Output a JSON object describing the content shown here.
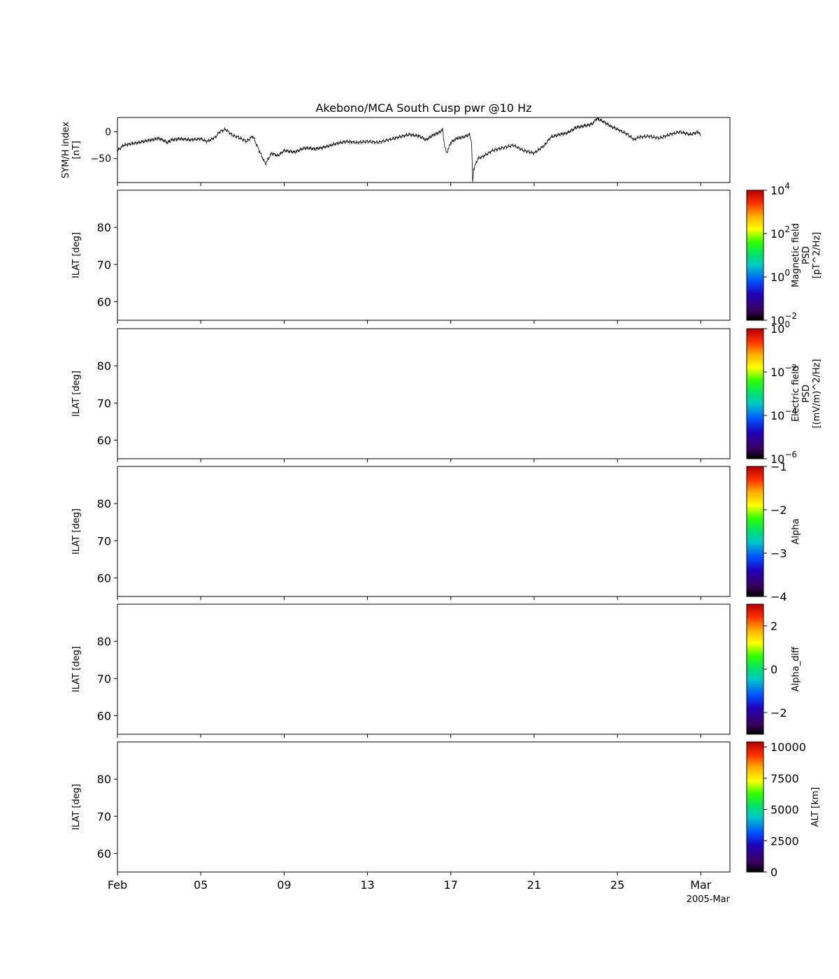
{
  "chart_data": {
    "type": "line",
    "title": "Akebono/MCA South Cusp pwr @10 Hz",
    "x_ticks": [
      "Feb",
      "05",
      "09",
      "13",
      "17",
      "21",
      "25",
      "Mar"
    ],
    "x_tick_days": [
      1,
      5,
      9,
      13,
      17,
      21,
      25,
      29
    ],
    "x_range_days": [
      1,
      30.4
    ],
    "x_offset_label": "2005-Mar",
    "symh": {
      "ylabel_lines": [
        "SYM/H index",
        "[nT]"
      ],
      "ylim": [
        -95,
        27
      ],
      "yticks": [
        0,
        -50
      ],
      "ytick_labels": [
        "0",
        "−50"
      ],
      "series": [
        {
          "name": "SYM/H",
          "color": "#000000",
          "x": [
            1.0,
            1.3,
            1.7,
            2.0,
            2.5,
            3.0,
            3.4,
            3.6,
            4.0,
            4.5,
            5.0,
            5.3,
            5.7,
            5.9,
            6.2,
            6.5,
            6.8,
            7.2,
            7.5,
            7.8,
            8.1,
            8.4,
            8.7,
            9.0,
            9.5,
            10.0,
            10.5,
            11.0,
            11.5,
            12.0,
            12.5,
            13.0,
            13.5,
            14.0,
            14.5,
            15.0,
            15.5,
            15.8,
            16.2,
            16.5,
            16.6,
            16.7,
            16.8,
            17.0,
            17.3,
            17.6,
            17.9,
            18.0,
            18.05,
            18.1,
            18.3,
            18.6,
            19.0,
            19.5,
            20.0,
            20.5,
            21.0,
            21.5,
            21.8,
            22.2,
            22.6,
            23.0,
            23.5,
            23.8,
            24.0,
            24.3,
            24.7,
            25.0,
            25.5,
            25.8,
            26.0,
            26.5,
            27.0,
            27.5,
            28.0,
            28.5,
            28.9,
            29.0
          ],
          "y": [
            -35,
            -25,
            -22,
            -20,
            -16,
            -12,
            -20,
            -15,
            -13,
            -15,
            -13,
            -18,
            -10,
            0,
            5,
            -6,
            -10,
            -18,
            -8,
            -35,
            -60,
            -40,
            -45,
            -35,
            -38,
            -30,
            -32,
            -28,
            -22,
            -18,
            -20,
            -18,
            -20,
            -15,
            -10,
            -5,
            -8,
            -15,
            -5,
            0,
            5,
            -25,
            -40,
            -20,
            -12,
            -10,
            -5,
            -20,
            -95,
            -70,
            -50,
            -45,
            -35,
            -30,
            -25,
            -35,
            -40,
            -25,
            -10,
            -5,
            -2,
            8,
            12,
            15,
            25,
            20,
            10,
            5,
            -5,
            -15,
            -10,
            -8,
            -12,
            -5,
            0,
            -5,
            0,
            -8
          ]
        }
      ]
    },
    "panels": [
      {
        "ylabel": "ILAT [deg]",
        "ylim": [
          55,
          90
        ],
        "yticks": [
          60,
          70,
          80
        ],
        "ytick_labels": [
          "60",
          "70",
          "80"
        ],
        "colorbar": {
          "label_lines": [
            "Magnetic field",
            "PSD",
            "[pT^2/Hz]"
          ],
          "scale": "log",
          "range": [
            -2,
            4
          ],
          "ticks": [
            4,
            2,
            0,
            -2
          ],
          "tick_bases": [
            "10",
            "10",
            "10",
            "10"
          ],
          "tick_exps": [
            "4",
            "2",
            "0",
            "−2"
          ]
        }
      },
      {
        "ylabel": "ILAT [deg]",
        "ylim": [
          55,
          90
        ],
        "yticks": [
          60,
          70,
          80
        ],
        "ytick_labels": [
          "60",
          "70",
          "80"
        ],
        "colorbar": {
          "label_lines": [
            "Electric field",
            "PSD",
            "[(mV/m)^2/Hz]"
          ],
          "scale": "log",
          "range": [
            -6,
            0
          ],
          "ticks": [
            0,
            -2,
            -4,
            -6
          ],
          "tick_bases": [
            "10",
            "10",
            "10",
            "10"
          ],
          "tick_exps": [
            "0",
            "−2",
            "−4",
            "−6"
          ]
        }
      },
      {
        "ylabel": "ILAT [deg]",
        "ylim": [
          55,
          90
        ],
        "yticks": [
          60,
          70,
          80
        ],
        "ytick_labels": [
          "60",
          "70",
          "80"
        ],
        "colorbar": {
          "label_lines": [
            "Alpha"
          ],
          "scale": "linear",
          "range": [
            -4,
            -1
          ],
          "ticks": [
            -1,
            -2,
            -3,
            -4
          ],
          "tick_labels": [
            "−1",
            "−2",
            "−3",
            "−4"
          ]
        }
      },
      {
        "ylabel": "ILAT [deg]",
        "ylim": [
          55,
          90
        ],
        "yticks": [
          60,
          70,
          80
        ],
        "ytick_labels": [
          "60",
          "70",
          "80"
        ],
        "colorbar": {
          "label_lines": [
            "Alpha_diff"
          ],
          "scale": "linear",
          "range": [
            -3,
            3
          ],
          "ticks": [
            2,
            0,
            -2
          ],
          "tick_labels": [
            "2",
            "0",
            "−2"
          ]
        }
      },
      {
        "ylabel": "ILAT [deg]",
        "ylim": [
          55,
          90
        ],
        "yticks": [
          60,
          70,
          80
        ],
        "ytick_labels": [
          "60",
          "70",
          "80"
        ],
        "colorbar": {
          "label_lines": [
            "ALT [km]"
          ],
          "scale": "linear",
          "range": [
            0,
            10400
          ],
          "ticks": [
            10000,
            7500,
            5000,
            2500,
            0
          ],
          "tick_labels": [
            "10000",
            "7500",
            "5000",
            "2500",
            "0"
          ]
        }
      }
    ]
  }
}
